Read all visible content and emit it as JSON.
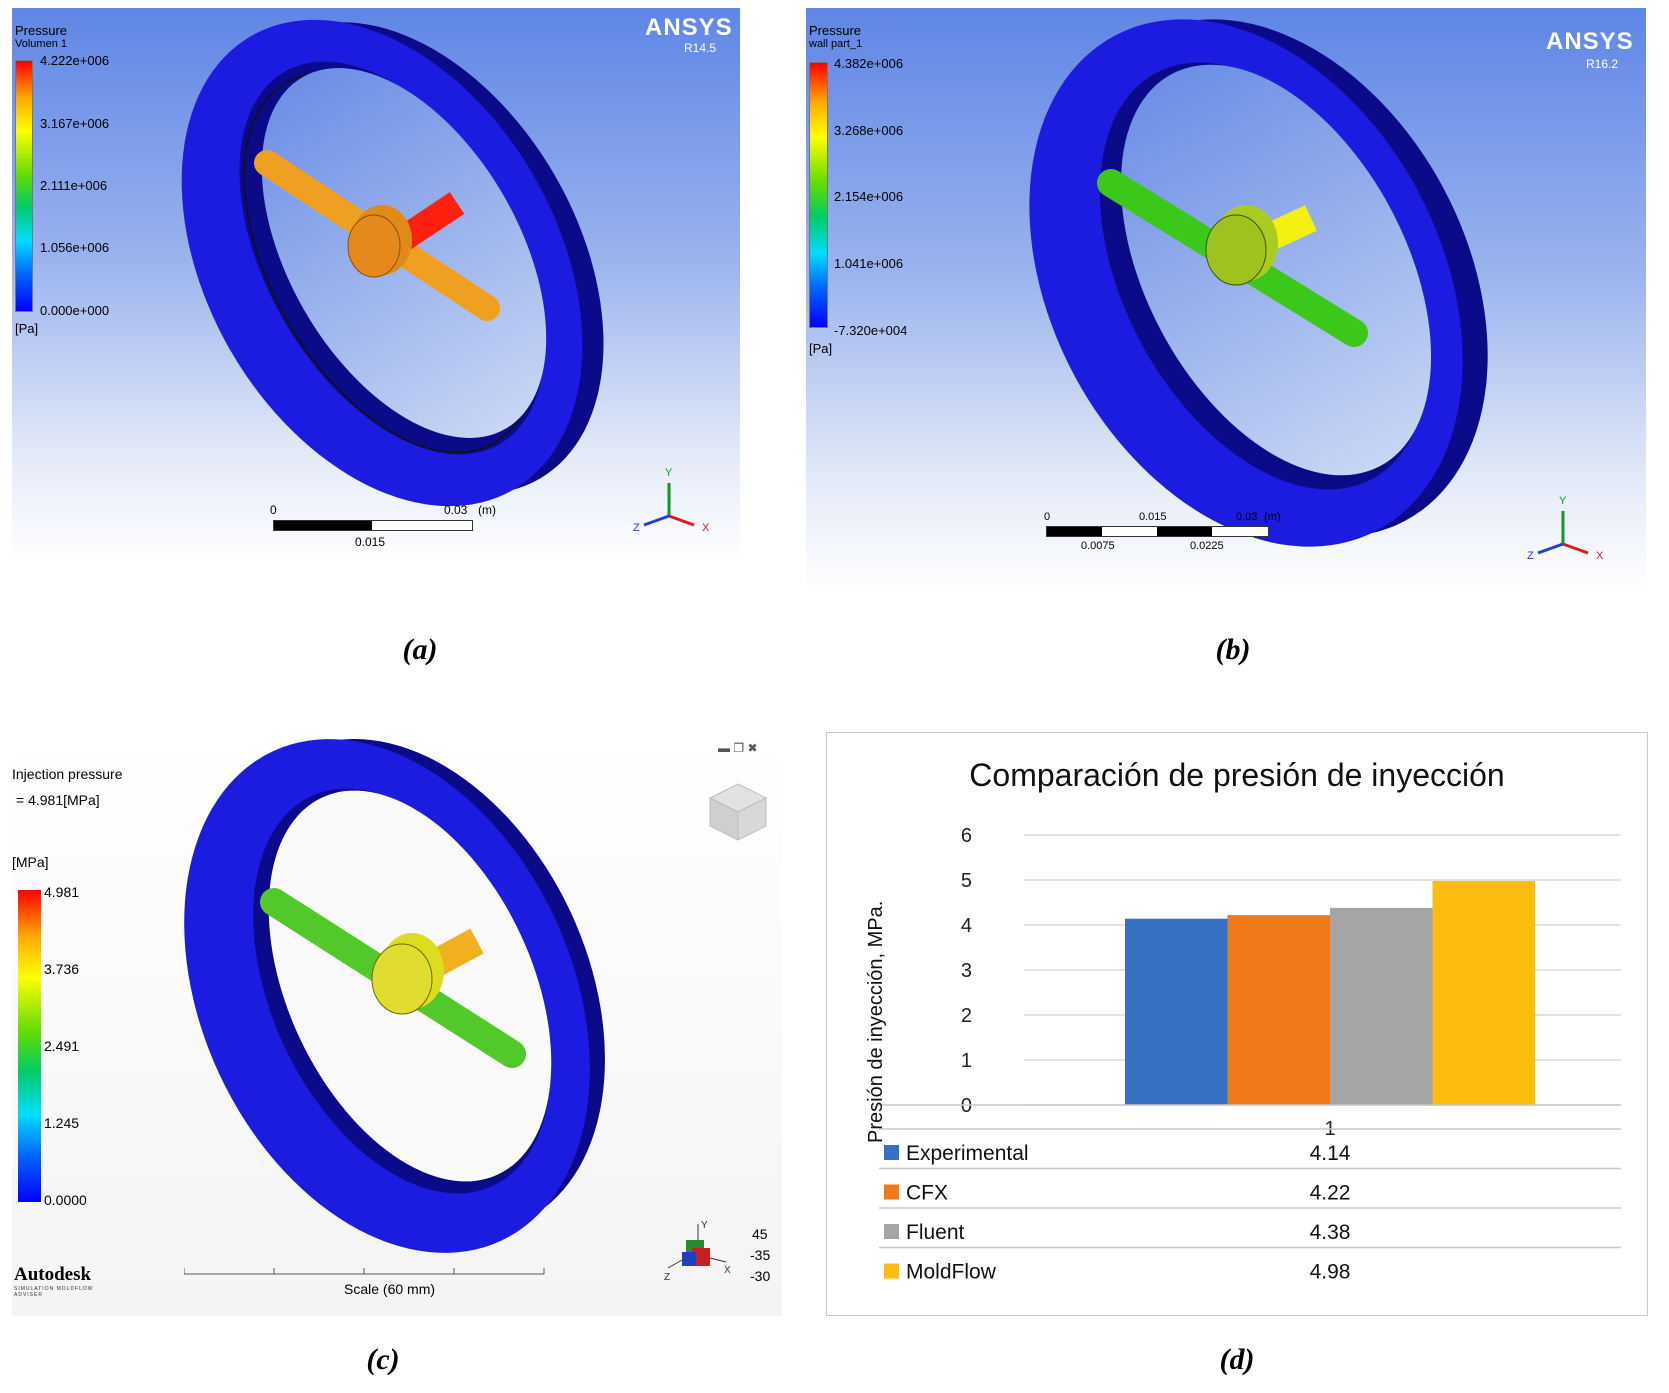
{
  "panel_a": {
    "legend_title": "Pressure",
    "legend_subtitle": "Volumen 1",
    "ticks": [
      "4.222e+006",
      "3.167e+006",
      "2.111e+006",
      "1.056e+006",
      "0.000e+000"
    ],
    "unit": "[Pa]",
    "brand": "ANSYS",
    "version": "R14.5",
    "scale": {
      "left": "0",
      "right": "0.03",
      "unit": "(m)",
      "mid": "0.015"
    },
    "axes": {
      "y": "Y",
      "x": "X",
      "z": "Z"
    },
    "caption": "(a)"
  },
  "panel_b": {
    "legend_title": "Pressure",
    "legend_subtitle": "wall part_1",
    "ticks": [
      "4.382e+006",
      "3.268e+006",
      "2.154e+006",
      "1.041e+006",
      "-7.320e+004"
    ],
    "unit": "[Pa]",
    "brand": "ANSYS",
    "version": "R16.2",
    "scale": {
      "left": "0",
      "mid": "0.015",
      "right": "0.03",
      "unit": "(m)",
      "q1": "0.0075",
      "q3": "0.0225"
    },
    "axes": {
      "y": "Y",
      "x": "X",
      "z": "Z"
    },
    "caption": "(b)"
  },
  "panel_c": {
    "title": "Injection pressure",
    "value": "= 4.981[MPa]",
    "unit": "[MPa]",
    "ticks": [
      "4.981",
      "3.736",
      "2.491",
      "1.245",
      "0.0000"
    ],
    "brand": "Autodesk",
    "brand_sub": "SIMULATION MOLDFLOW ADVISER",
    "scale_label": "Scale (60 mm)",
    "angles": [
      "45",
      "-35",
      "-30"
    ],
    "axes": {
      "y": "Y",
      "x": "X",
      "z": "Z"
    },
    "caption": "(c)"
  },
  "panel_d": {
    "caption": "(d)"
  },
  "colors": {
    "experimental": "#3572c6",
    "cfx": "#f07a1a",
    "fluent": "#a5a5a5",
    "moldflow": "#fdbd10",
    "ring": "#1c1ce0"
  },
  "chart_data": {
    "type": "bar",
    "title": "Comparación de presión de inyección",
    "ylabel": "Presión de inyección, MPa.",
    "xlabel": "",
    "categories": [
      "1"
    ],
    "ylim": [
      0,
      6
    ],
    "yticks": [
      "0",
      "1",
      "2",
      "3",
      "4",
      "5",
      "6"
    ],
    "series": [
      {
        "name": "Experimental",
        "values": [
          4.14
        ],
        "label": "4.14"
      },
      {
        "name": "CFX",
        "values": [
          4.22
        ],
        "label": "4.22"
      },
      {
        "name": "Fluent",
        "values": [
          4.38
        ],
        "label": "4.38"
      },
      {
        "name": "MoldFlow",
        "values": [
          4.98
        ],
        "label": "4.98"
      }
    ]
  }
}
